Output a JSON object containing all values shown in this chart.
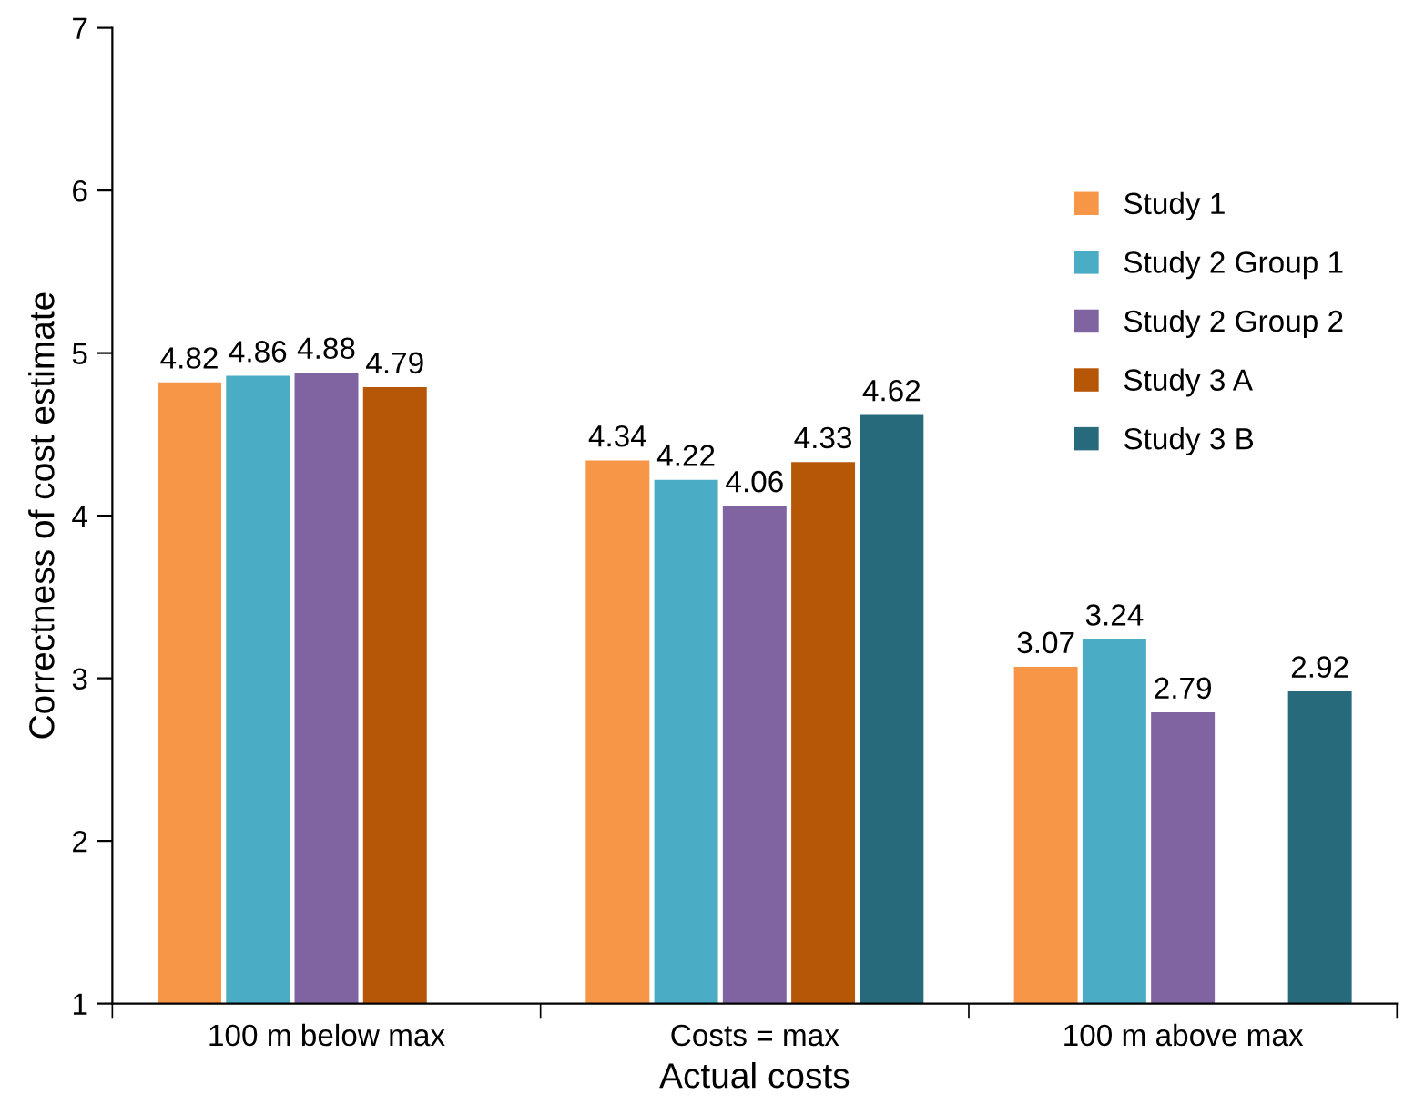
{
  "chart_data": {
    "type": "bar",
    "xlabel": "Actual costs",
    "ylabel": "Correctness of cost estimate",
    "categories": [
      "100 m below max",
      "Costs = max",
      "100 m above max"
    ],
    "series": [
      {
        "name": "Study 1",
        "color": "#f79646",
        "values": [
          4.82,
          4.34,
          3.07
        ]
      },
      {
        "name": "Study 2 Group 1",
        "color": "#4bacc6",
        "values": [
          4.86,
          4.22,
          3.24
        ]
      },
      {
        "name": "Study 2 Group 2",
        "color": "#8064a2",
        "values": [
          4.88,
          4.06,
          2.79
        ]
      },
      {
        "name": "Study 3 A",
        "color": "#b65708",
        "values": [
          4.79,
          4.33,
          null
        ]
      },
      {
        "name": "Study 3 B",
        "color": "#276a7c",
        "values": [
          null,
          4.62,
          2.92
        ]
      }
    ],
    "ylim": [
      1,
      7
    ],
    "yticks": [
      1,
      2,
      3,
      4,
      5,
      6,
      7
    ],
    "grid": false,
    "data_labels": true,
    "legend": "top right"
  }
}
